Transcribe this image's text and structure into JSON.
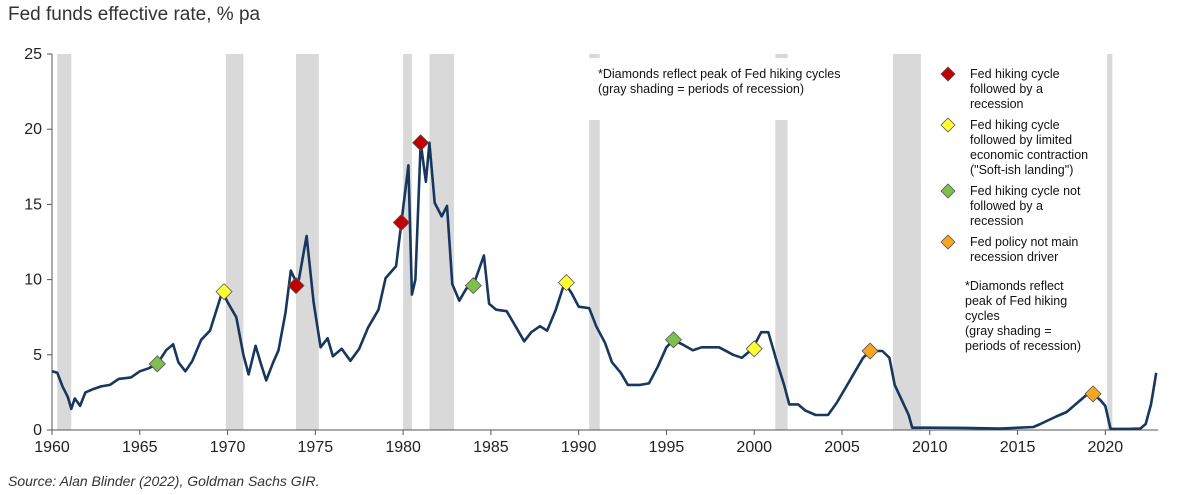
{
  "title": "Fed funds effective rate, % pa",
  "source": "Source: Alan Blinder (2022), Goldman Sachs GIR.",
  "chart_data": {
    "type": "line",
    "title": "Fed funds effective rate, % pa",
    "xlabel": "",
    "ylabel": "",
    "xlim": [
      1960,
      2023
    ],
    "ylim": [
      0,
      25
    ],
    "x_ticks": [
      "1960",
      "1965",
      "1970",
      "1975",
      "1980",
      "1985",
      "1990",
      "1995",
      "2000",
      "2005",
      "2010",
      "2015",
      "2020"
    ],
    "y_ticks": [
      "0",
      "5",
      "10",
      "15",
      "20",
      "25"
    ],
    "grid": false,
    "colors": {
      "line": "#17375e",
      "recession": "#d9d9d9",
      "red": "#c00000",
      "yellow": "#ffff33",
      "green": "#7fbf4c",
      "orange": "#f5a623"
    },
    "recessions": [
      [
        1960.3,
        1961.1
      ],
      [
        1969.9,
        1970.9
      ],
      [
        1973.9,
        1975.2
      ],
      [
        1980.0,
        1980.5
      ],
      [
        1981.5,
        1982.9
      ],
      [
        1990.6,
        1991.2
      ],
      [
        2001.2,
        2001.9
      ],
      [
        2007.9,
        2009.5
      ],
      [
        2020.1,
        2020.4
      ]
    ],
    "series": [
      {
        "name": "Fed funds effective rate",
        "points": [
          [
            1960.0,
            3.9
          ],
          [
            1960.3,
            3.8
          ],
          [
            1960.6,
            2.9
          ],
          [
            1960.9,
            2.2
          ],
          [
            1961.1,
            1.4
          ],
          [
            1961.3,
            2.1
          ],
          [
            1961.6,
            1.6
          ],
          [
            1961.9,
            2.5
          ],
          [
            1962.3,
            2.7
          ],
          [
            1962.8,
            2.9
          ],
          [
            1963.3,
            3.0
          ],
          [
            1963.8,
            3.4
          ],
          [
            1964.5,
            3.5
          ],
          [
            1965.0,
            3.9
          ],
          [
            1965.5,
            4.1
          ],
          [
            1966.0,
            4.4
          ],
          [
            1966.5,
            5.3
          ],
          [
            1966.9,
            5.7
          ],
          [
            1967.2,
            4.5
          ],
          [
            1967.6,
            3.9
          ],
          [
            1968.0,
            4.6
          ],
          [
            1968.5,
            6.0
          ],
          [
            1969.0,
            6.6
          ],
          [
            1969.7,
            9.2
          ],
          [
            1970.0,
            8.5
          ],
          [
            1970.5,
            7.5
          ],
          [
            1970.9,
            5.0
          ],
          [
            1971.2,
            3.7
          ],
          [
            1971.6,
            5.6
          ],
          [
            1971.9,
            4.4
          ],
          [
            1972.2,
            3.3
          ],
          [
            1972.6,
            4.5
          ],
          [
            1972.9,
            5.3
          ],
          [
            1973.3,
            7.8
          ],
          [
            1973.6,
            10.6
          ],
          [
            1974.0,
            9.6
          ],
          [
            1974.5,
            12.9
          ],
          [
            1974.9,
            8.5
          ],
          [
            1975.3,
            5.5
          ],
          [
            1975.7,
            6.1
          ],
          [
            1976.0,
            4.9
          ],
          [
            1976.5,
            5.4
          ],
          [
            1977.0,
            4.6
          ],
          [
            1977.5,
            5.4
          ],
          [
            1978.0,
            6.8
          ],
          [
            1978.6,
            8.0
          ],
          [
            1979.0,
            10.1
          ],
          [
            1979.6,
            10.9
          ],
          [
            1979.9,
            13.8
          ],
          [
            1980.3,
            17.6
          ],
          [
            1980.5,
            9.0
          ],
          [
            1980.7,
            10.0
          ],
          [
            1981.0,
            19.1
          ],
          [
            1981.3,
            16.5
          ],
          [
            1981.5,
            19.1
          ],
          [
            1981.8,
            15.1
          ],
          [
            1982.2,
            14.2
          ],
          [
            1982.5,
            14.9
          ],
          [
            1982.8,
            9.7
          ],
          [
            1983.2,
            8.6
          ],
          [
            1983.6,
            9.4
          ],
          [
            1984.0,
            9.6
          ],
          [
            1984.6,
            11.6
          ],
          [
            1984.9,
            8.4
          ],
          [
            1985.3,
            8.0
          ],
          [
            1985.9,
            7.9
          ],
          [
            1986.4,
            6.9
          ],
          [
            1986.9,
            5.9
          ],
          [
            1987.3,
            6.5
          ],
          [
            1987.8,
            6.9
          ],
          [
            1988.2,
            6.6
          ],
          [
            1988.7,
            8.0
          ],
          [
            1989.2,
            9.8
          ],
          [
            1989.6,
            9.1
          ],
          [
            1990.0,
            8.2
          ],
          [
            1990.6,
            8.1
          ],
          [
            1991.0,
            6.9
          ],
          [
            1991.5,
            5.8
          ],
          [
            1991.9,
            4.5
          ],
          [
            1992.4,
            3.8
          ],
          [
            1992.8,
            3.0
          ],
          [
            1993.5,
            3.0
          ],
          [
            1994.0,
            3.1
          ],
          [
            1994.5,
            4.2
          ],
          [
            1995.0,
            5.5
          ],
          [
            1995.4,
            6.0
          ],
          [
            1995.9,
            5.7
          ],
          [
            1996.5,
            5.3
          ],
          [
            1997.0,
            5.5
          ],
          [
            1997.5,
            5.5
          ],
          [
            1998.0,
            5.5
          ],
          [
            1998.8,
            5.0
          ],
          [
            1999.3,
            4.8
          ],
          [
            1999.9,
            5.4
          ],
          [
            2000.4,
            6.5
          ],
          [
            2000.8,
            6.5
          ],
          [
            2001.3,
            4.5
          ],
          [
            2001.7,
            3.0
          ],
          [
            2002.0,
            1.7
          ],
          [
            2002.5,
            1.7
          ],
          [
            2002.9,
            1.3
          ],
          [
            2003.5,
            1.0
          ],
          [
            2004.2,
            1.0
          ],
          [
            2004.7,
            1.8
          ],
          [
            2005.2,
            2.8
          ],
          [
            2005.7,
            3.8
          ],
          [
            2006.2,
            4.8
          ],
          [
            2006.6,
            5.25
          ],
          [
            2007.3,
            5.25
          ],
          [
            2007.7,
            4.8
          ],
          [
            2008.0,
            3.0
          ],
          [
            2008.4,
            2.0
          ],
          [
            2008.8,
            1.0
          ],
          [
            2009.0,
            0.15
          ],
          [
            2010.0,
            0.15
          ],
          [
            2012.0,
            0.14
          ],
          [
            2014.0,
            0.09
          ],
          [
            2015.9,
            0.2
          ],
          [
            2016.3,
            0.4
          ],
          [
            2017.2,
            0.9
          ],
          [
            2017.8,
            1.2
          ],
          [
            2018.3,
            1.7
          ],
          [
            2018.9,
            2.3
          ],
          [
            2019.3,
            2.4
          ],
          [
            2019.7,
            2.0
          ],
          [
            2020.0,
            1.6
          ],
          [
            2020.3,
            0.07
          ],
          [
            2021.5,
            0.08
          ],
          [
            2022.0,
            0.1
          ],
          [
            2022.3,
            0.4
          ],
          [
            2022.6,
            1.7
          ],
          [
            2022.8,
            3.1
          ],
          [
            2022.9,
            3.8
          ]
        ]
      }
    ],
    "markers": [
      {
        "x": 1966.0,
        "y": 4.4,
        "kind": "green"
      },
      {
        "x": 1969.8,
        "y": 9.2,
        "kind": "yellow"
      },
      {
        "x": 1973.9,
        "y": 9.6,
        "kind": "red"
      },
      {
        "x": 1979.9,
        "y": 13.8,
        "kind": "red"
      },
      {
        "x": 1981.0,
        "y": 19.1,
        "kind": "red"
      },
      {
        "x": 1984.0,
        "y": 9.6,
        "kind": "green"
      },
      {
        "x": 1989.3,
        "y": 9.8,
        "kind": "yellow"
      },
      {
        "x": 1995.4,
        "y": 6.0,
        "kind": "green"
      },
      {
        "x": 2000.0,
        "y": 5.4,
        "kind": "yellow"
      },
      {
        "x": 2006.6,
        "y": 5.25,
        "kind": "orange"
      },
      {
        "x": 2019.3,
        "y": 2.4,
        "kind": "orange"
      }
    ],
    "note_lines": [
      "*Diamonds reflect peak of Fed hiking cycles",
      "(gray shading = periods of recession)"
    ],
    "legend": [
      {
        "kind": "red",
        "lines": [
          "Fed hiking cycle",
          "followed by a",
          "recession"
        ]
      },
      {
        "kind": "yellow",
        "lines": [
          "Fed hiking cycle",
          "followed by limited",
          "economic contraction",
          "(\"Soft-ish landing\")"
        ]
      },
      {
        "kind": "green",
        "lines": [
          "Fed hiking cycle not",
          "followed by a",
          "recession"
        ]
      },
      {
        "kind": "orange",
        "lines": [
          "Fed policy not main",
          "recession driver"
        ]
      }
    ],
    "legend_note_lines": [
      "*Diamonds reflect",
      "peak of Fed hiking",
      "cycles",
      "(gray shading =",
      "periods of recession)"
    ]
  }
}
